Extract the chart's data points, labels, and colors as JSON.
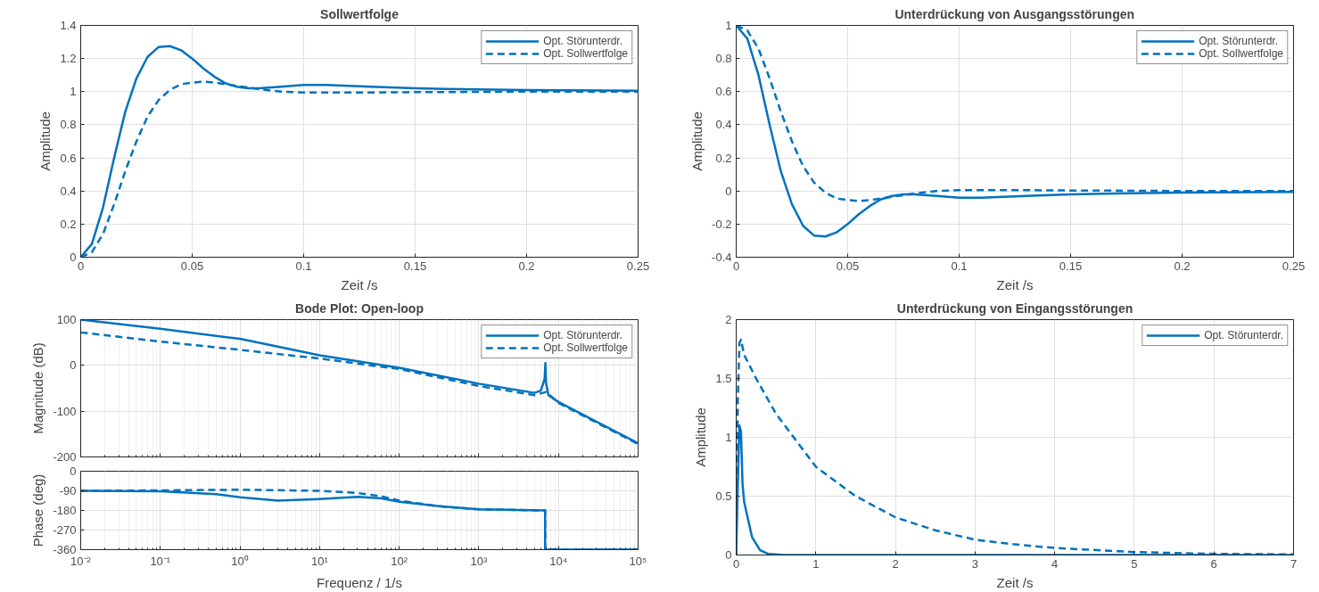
{
  "chart_data": [
    {
      "type": "line",
      "title": "Sollwertfolge",
      "xlabel": "Zeit /s",
      "ylabel": "Amplitude",
      "xlim": [
        0,
        0.25
      ],
      "ylim": [
        0,
        1.4
      ],
      "xticks": [
        0,
        0.05,
        0.1,
        0.15,
        0.2,
        0.25
      ],
      "yticks": [
        0,
        0.2,
        0.4,
        0.6,
        0.8,
        1,
        1.2,
        1.4
      ],
      "grid": true,
      "legend": "top right",
      "x": [
        0,
        0.005,
        0.01,
        0.015,
        0.02,
        0.025,
        0.03,
        0.035,
        0.04,
        0.045,
        0.05,
        0.055,
        0.06,
        0.065,
        0.07,
        0.075,
        0.08,
        0.09,
        0.1,
        0.11,
        0.12,
        0.13,
        0.15,
        0.17,
        0.2,
        0.25
      ],
      "series": [
        {
          "name": "Opt. Störunterdr.",
          "color": "#0072bd",
          "line_style": "solid",
          "values": [
            0,
            0.08,
            0.3,
            0.6,
            0.88,
            1.08,
            1.21,
            1.27,
            1.275,
            1.25,
            1.2,
            1.14,
            1.09,
            1.05,
            1.03,
            1.02,
            1.02,
            1.03,
            1.04,
            1.04,
            1.035,
            1.03,
            1.02,
            1.015,
            1.01,
            1.005
          ]
        },
        {
          "name": "Opt. Sollwertfolge",
          "color": "#0072bd",
          "line_style": "dashed",
          "values": [
            0,
            0.03,
            0.14,
            0.32,
            0.52,
            0.7,
            0.85,
            0.95,
            1.01,
            1.045,
            1.055,
            1.06,
            1.055,
            1.045,
            1.035,
            1.025,
            1.015,
            1.0,
            0.995,
            0.995,
            0.995,
            0.995,
            0.997,
            0.998,
            1.0,
            1.0
          ]
        }
      ]
    },
    {
      "type": "line",
      "title": "Unterdrückung von Ausgangsstörungen",
      "xlabel": "Zeit /s",
      "ylabel": "Amplitude",
      "xlim": [
        0,
        0.25
      ],
      "ylim": [
        -0.4,
        1
      ],
      "xticks": [
        0,
        0.05,
        0.1,
        0.15,
        0.2,
        0.25
      ],
      "yticks": [
        -0.4,
        -0.2,
        0,
        0.2,
        0.4,
        0.6,
        0.8,
        1
      ],
      "grid": true,
      "legend": "top right",
      "x": [
        0,
        0.005,
        0.01,
        0.015,
        0.02,
        0.025,
        0.03,
        0.035,
        0.04,
        0.045,
        0.05,
        0.055,
        0.06,
        0.065,
        0.07,
        0.075,
        0.08,
        0.09,
        0.1,
        0.11,
        0.12,
        0.13,
        0.15,
        0.17,
        0.2,
        0.25
      ],
      "series": [
        {
          "name": "Opt. Störunterdr.",
          "color": "#0072bd",
          "line_style": "solid",
          "values": [
            1,
            0.92,
            0.7,
            0.4,
            0.12,
            -0.08,
            -0.21,
            -0.27,
            -0.275,
            -0.25,
            -0.2,
            -0.14,
            -0.09,
            -0.05,
            -0.03,
            -0.02,
            -0.02,
            -0.03,
            -0.04,
            -0.04,
            -0.035,
            -0.03,
            -0.02,
            -0.015,
            -0.01,
            -0.005
          ]
        },
        {
          "name": "Opt. Sollwertfolge",
          "color": "#0072bd",
          "line_style": "dashed",
          "values": [
            1,
            0.97,
            0.86,
            0.68,
            0.48,
            0.3,
            0.15,
            0.05,
            -0.01,
            -0.045,
            -0.055,
            -0.06,
            -0.055,
            -0.045,
            -0.035,
            -0.025,
            -0.015,
            0,
            0.005,
            0.005,
            0.005,
            0.005,
            0.003,
            0.002,
            0,
            0
          ]
        }
      ]
    },
    {
      "type": "line",
      "title": "Bode Plot: Open-loop",
      "ylabel": "Magnitude (dB)",
      "log": "x",
      "xlim": [
        0.01,
        100000
      ],
      "ylim": [
        -200,
        100
      ],
      "xticks": [
        0.01,
        0.1,
        1,
        10,
        100,
        1000,
        10000,
        100000
      ],
      "yticks": [
        -200,
        -100,
        0,
        100
      ],
      "tick_labels": "y",
      "grid": true,
      "legend": "top right",
      "series": [
        {
          "name": "Opt. Störunterdr.",
          "color": "#0072bd",
          "line_style": "solid",
          "x": [
            0.01,
            0.1,
            1,
            10,
            100,
            1000,
            5000,
            6000,
            6700,
            6850,
            7000,
            7500,
            10000,
            100000
          ],
          "values": [
            100,
            80,
            58,
            22,
            -5,
            -40,
            -60,
            -55,
            -30,
            5,
            -40,
            -65,
            -80,
            -170
          ]
        },
        {
          "name": "Opt. Sollwertfolge",
          "color": "#0072bd",
          "line_style": "dashed",
          "x": [
            0.01,
            0.1,
            1,
            10,
            100,
            1000,
            5000,
            7000,
            10000,
            100000
          ],
          "values": [
            72,
            52,
            34,
            15,
            -8,
            -45,
            -65,
            -58,
            -82,
            -172
          ]
        }
      ]
    },
    {
      "type": "line",
      "xlabel": "Frequenz / 1/s",
      "ylabel": "Phase (deg)",
      "log": "x",
      "xlim": [
        0.01,
        100000
      ],
      "ylim": [
        -360,
        0
      ],
      "xticks": [
        {
          "value": 0.01,
          "label": "10⁻²"
        },
        {
          "value": 0.1,
          "label": "10⁻¹"
        },
        {
          "value": 1,
          "label": "10⁰"
        },
        {
          "value": 10,
          "label": "10¹"
        },
        {
          "value": 100,
          "label": "10²"
        },
        {
          "value": 1000,
          "label": "10³"
        },
        {
          "value": 10000,
          "label": "10⁴"
        },
        {
          "value": 100000,
          "label": "10⁵"
        }
      ],
      "yticks": [
        -360,
        -270,
        -180,
        -90,
        0
      ],
      "grid": true,
      "series": [
        {
          "color": "#0072bd",
          "line_style": "solid",
          "x": [
            0.01,
            0.1,
            0.5,
            1,
            3,
            10,
            30,
            60,
            100,
            300,
            1000,
            3000,
            6800,
            6800,
            100000
          ],
          "values": [
            -90,
            -92,
            -105,
            -120,
            -135,
            -128,
            -118,
            -125,
            -140,
            -160,
            -175,
            -178,
            -180,
            -360,
            -360
          ]
        },
        {
          "color": "#0072bd",
          "line_style": "dashed",
          "x": [
            0.01,
            0.1,
            1,
            10,
            30,
            60,
            100,
            300,
            1000,
            3000,
            6800,
            6800,
            100000
          ],
          "values": [
            -90,
            -88,
            -85,
            -90,
            -100,
            -115,
            -135,
            -160,
            -175,
            -178,
            -180,
            -360,
            -360
          ]
        }
      ]
    },
    {
      "type": "line",
      "title": "Unterdrückung von Eingangsstörungen",
      "xlabel": "Zeit /s",
      "ylabel": "Amplitude",
      "xlim": [
        0,
        7
      ],
      "ylim": [
        0,
        2
      ],
      "xticks": [
        0,
        1,
        2,
        3,
        4,
        5,
        6,
        7
      ],
      "yticks": [
        0,
        0.5,
        1,
        1.5,
        2
      ],
      "grid": true,
      "legend": "top right",
      "series": [
        {
          "name": "Opt. Störunterdr.",
          "color": "#0072bd",
          "line_style": "solid",
          "x": [
            0,
            0.02,
            0.04,
            0.06,
            0.08,
            0.1,
            0.15,
            0.2,
            0.3,
            0.4,
            0.6,
            1,
            7
          ],
          "values": [
            0,
            0.6,
            1.1,
            1.05,
            0.6,
            0.45,
            0.3,
            0.15,
            0.04,
            0.01,
            0,
            0,
            0
          ]
        },
        {
          "color": "#0072bd",
          "line_style": "dashed",
          "x": [
            0,
            0.02,
            0.04,
            0.06,
            0.1,
            0.25,
            0.5,
            1,
            1.5,
            2,
            2.5,
            3,
            3.5,
            4,
            5,
            6,
            7
          ],
          "values": [
            0,
            1.3,
            1.8,
            1.83,
            1.7,
            1.5,
            1.2,
            0.75,
            0.5,
            0.32,
            0.21,
            0.13,
            0.09,
            0.06,
            0.025,
            0.01,
            0.005
          ]
        }
      ]
    }
  ]
}
